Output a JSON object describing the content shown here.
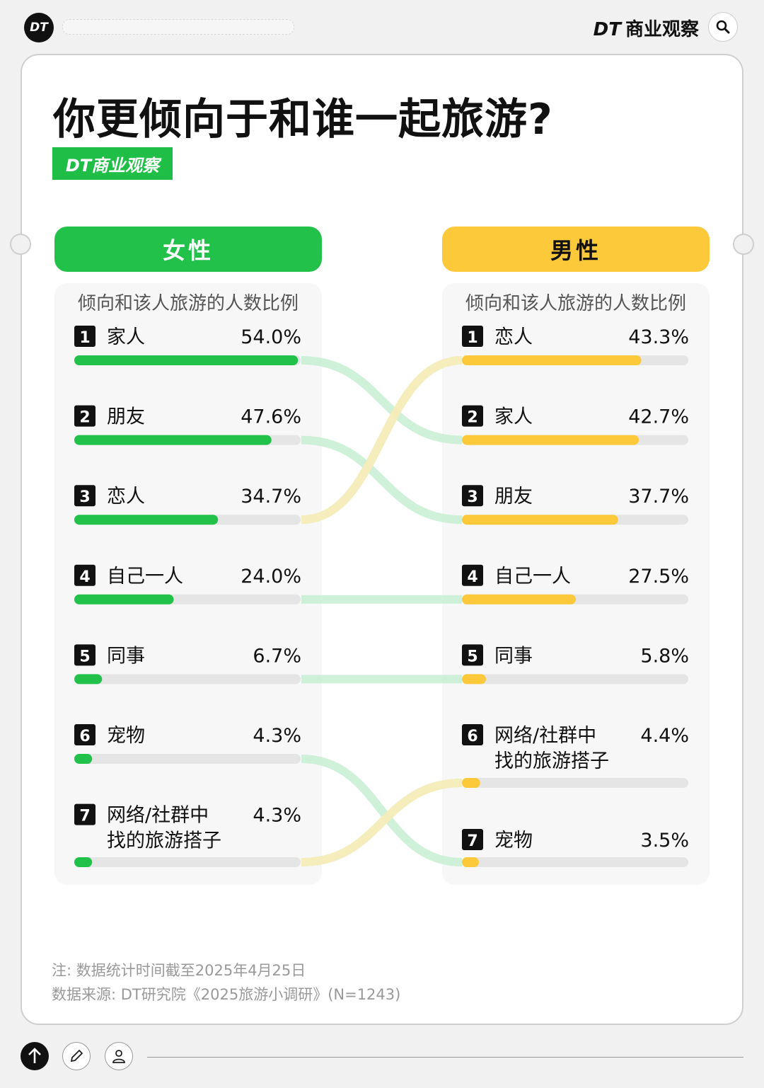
{
  "topbar": {
    "logo": "DT",
    "brand_dt": "DT",
    "brand_name": "商业观察"
  },
  "title": "你更倾向于和谁一起旅游?",
  "badge": "DT商业观察",
  "colors": {
    "female": "#22c24a",
    "male": "#fcc93a",
    "track": "#e5e5e5",
    "female_link": "#c7efd2",
    "male_link": "#fcecb6"
  },
  "chart_data": {
    "type": "bar",
    "subtitle": "倾向和该人旅游的人数比例",
    "xlim": [
      0,
      100
    ],
    "groups": [
      {
        "name": "女性",
        "items": [
          {
            "rank": "1",
            "label": "家人",
            "value": 54.0,
            "display": "54.0%"
          },
          {
            "rank": "2",
            "label": "朋友",
            "value": 47.6,
            "display": "47.6%"
          },
          {
            "rank": "3",
            "label": "恋人",
            "value": 34.7,
            "display": "34.7%"
          },
          {
            "rank": "4",
            "label": "自己一人",
            "value": 24.0,
            "display": "24.0%"
          },
          {
            "rank": "5",
            "label": "同事",
            "value": 6.7,
            "display": "6.7%"
          },
          {
            "rank": "6",
            "label": "宠物",
            "value": 4.3,
            "display": "4.3%"
          },
          {
            "rank": "7",
            "label": "网络/社群中\n找的旅游搭子",
            "value": 4.3,
            "display": "4.3%"
          }
        ]
      },
      {
        "name": "男性",
        "items": [
          {
            "rank": "1",
            "label": "恋人",
            "value": 43.3,
            "display": "43.3%"
          },
          {
            "rank": "2",
            "label": "家人",
            "value": 42.7,
            "display": "42.7%"
          },
          {
            "rank": "3",
            "label": "朋友",
            "value": 37.7,
            "display": "37.7%"
          },
          {
            "rank": "4",
            "label": "自己一人",
            "value": 27.5,
            "display": "27.5%"
          },
          {
            "rank": "5",
            "label": "同事",
            "value": 5.8,
            "display": "5.8%"
          },
          {
            "rank": "6",
            "label": "网络/社群中\n找的旅游搭子",
            "value": 4.4,
            "display": "4.4%"
          },
          {
            "rank": "7",
            "label": "宠物",
            "value": 3.5,
            "display": "3.5%"
          }
        ]
      }
    ]
  },
  "footer": {
    "note": "注: 数据统计时间截至2025年4月25日",
    "source": "数据来源: DT研究院《2025旅游小调研》(N=1243)"
  }
}
